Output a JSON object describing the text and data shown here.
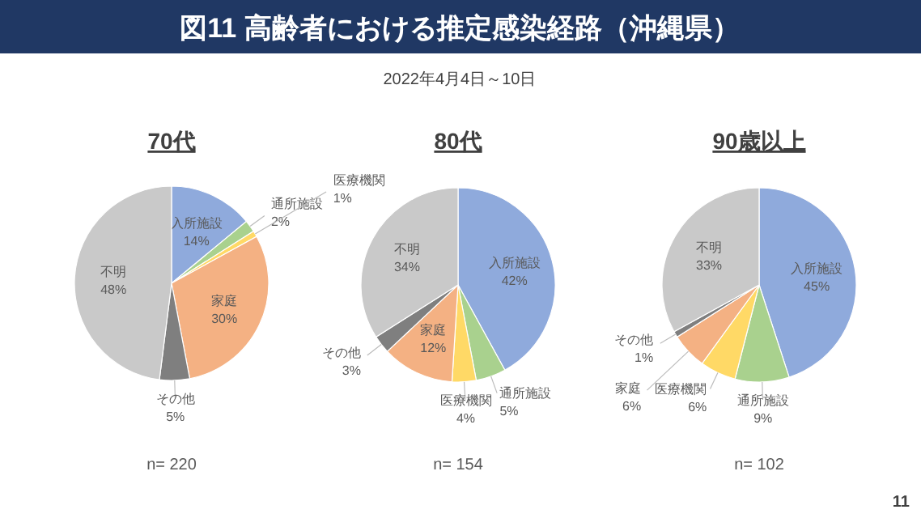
{
  "chart_data": [
    {
      "type": "pie",
      "title": "70代",
      "categories": [
        "入所施設",
        "通所施設",
        "医療機関",
        "家庭",
        "その他",
        "不明"
      ],
      "values": [
        14,
        2,
        1,
        30,
        5,
        48
      ],
      "value_labels": [
        "14%",
        "2%",
        "1%",
        "30%",
        "5%",
        "48%"
      ],
      "colors": [
        "#8faadc",
        "#a9d18e",
        "#ffd966",
        "#f4b183",
        "#7f7f7f",
        "#c9c9c9"
      ],
      "data_labels": true,
      "annotations": [
        "図11 高齢者における推定感染経路（沖縄県）",
        "2022年4月4日～10日",
        "n= 220"
      ]
    },
    {
      "type": "pie",
      "title": "80代",
      "categories": [
        "入所施設",
        "通所施設",
        "医療機関",
        "家庭",
        "その他",
        "不明"
      ],
      "values": [
        42,
        5,
        4,
        12,
        3,
        34
      ],
      "value_labels": [
        "42%",
        "5%",
        "4%",
        "12%",
        "3%",
        "34%"
      ],
      "colors": [
        "#8faadc",
        "#a9d18e",
        "#ffd966",
        "#f4b183",
        "#7f7f7f",
        "#c9c9c9"
      ],
      "data_labels": true,
      "annotations": [
        "n= 154"
      ]
    },
    {
      "type": "pie",
      "title": "90歳以上",
      "categories": [
        "入所施設",
        "通所施設",
        "医療機関",
        "家庭",
        "その他",
        "不明"
      ],
      "values": [
        45,
        9,
        6,
        6,
        1,
        33
      ],
      "value_labels": [
        "45%",
        "9%",
        "6%",
        "6%",
        "1%",
        "33%"
      ],
      "colors": [
        "#8faadc",
        "#a9d18e",
        "#ffd966",
        "#f4b183",
        "#7f7f7f",
        "#c9c9c9"
      ],
      "data_labels": true,
      "annotations": [
        "n= 102",
        "11"
      ]
    }
  ]
}
